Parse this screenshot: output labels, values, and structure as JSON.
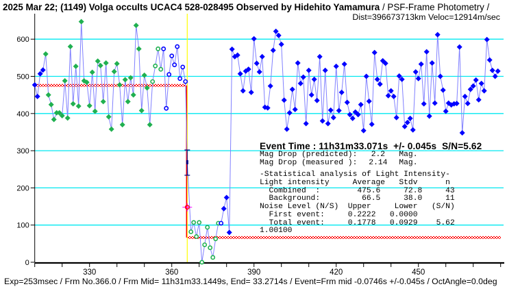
{
  "header": {
    "title_bold": "2025 Mar 22; (1149) Volga occults UCAC4 528-028495 Observed by Hidehito Yamamura",
    "title_rest": " / PSF-Frame Photometry /",
    "subtitle": "Dist=396673713km Veloc=12914m/sec"
  },
  "info": {
    "event_time": "Event Time : 11h31m33.071s  +/- 0.045s  S/N=5.62",
    "mag_pred_label": "Mag Drop (predicted):",
    "mag_pred_value": "2.2",
    "mag_pred_unit": "Mag.",
    "mag_meas_label": "Mag Drop (measured ):",
    "mag_meas_value": "2.14",
    "mag_meas_unit": "Mag.",
    "stats_title": "-Statistical analysis of Light Intensity-",
    "stats_header": {
      "label": "Light intensity",
      "avg": "Average",
      "stdv": "Stdv",
      "n": "n"
    },
    "combined": {
      "label": "Combined  :",
      "avg": "475.6",
      "stdv": "72.8",
      "n": "43"
    },
    "background": {
      "label": "Background:",
      "avg": "66.5",
      "stdv": "38.0",
      "n": "11"
    },
    "noise_header": {
      "label": "Noise Level (N/S)",
      "upper": "Upper",
      "lower": "Lower",
      "sn": "(S/N)"
    },
    "first_event": {
      "label": "First event:",
      "upper": "0.2222",
      "lower": "0.0000"
    },
    "total_event": {
      "label": "Total event:",
      "upper": "0.1778",
      "lower": "0.0929",
      "sn": "5.62"
    },
    "scale": "1.00100"
  },
  "footer": "Exp=253msec / Frm No.366.0 / Frm Mid= 11h31m33.1449s,  End= 33.2714s / Event=Frm mid -0.0746s +/-0.045s / OctAngle=0.0deg",
  "chart_data": {
    "type": "line",
    "xlabel": "",
    "ylabel": "",
    "xlim": [
      310,
      480
    ],
    "ylim": [
      0,
      600
    ],
    "xticks_minor_step": 10,
    "xtick_labels": [
      "330",
      "360",
      "390",
      "420",
      "450"
    ],
    "xtick_values": [
      330,
      360,
      390,
      420,
      450
    ],
    "ytick_labels": [
      "0",
      "100",
      "200",
      "300",
      "400",
      "500",
      "600"
    ],
    "ytick_values": [
      0,
      100,
      200,
      300,
      400,
      500,
      600
    ],
    "grid": true,
    "colors": {
      "grid": "#00e8f0",
      "line": "#8080ff",
      "blue": "#0000ff",
      "green": "#20b050",
      "event": "#000080",
      "step": "#ff0000",
      "event_line": "#ffff00",
      "cross": "#ff00ff"
    },
    "series": [
      {
        "name": "blue-filled-pre",
        "marker": "filled",
        "color": "blue",
        "start": 310,
        "values": [
          477,
          446,
          507,
          517
        ]
      },
      {
        "name": "green-filled-pre",
        "marker": "filled",
        "color": "green",
        "start": 314,
        "values": [
          560,
          450,
          424,
          384,
          402,
          402,
          394,
          488,
          388,
          580,
          426,
          527,
          420,
          647,
          488,
          484,
          421,
          511,
          406,
          541,
          529,
          432,
          536,
          391,
          358,
          513,
          534,
          477,
          370,
          491,
          432,
          496,
          450,
          637,
          574,
          408,
          503,
          469,
          370
        ]
      },
      {
        "name": "green-open-pre",
        "marker": "open",
        "color": "green",
        "start": 353,
        "values": [
          486,
          528,
          574,
          519
        ]
      },
      {
        "name": "blue-open-pre",
        "marker": "open",
        "color": "blue",
        "start": 357,
        "values": [
          574,
          414,
          505,
          555,
          531,
          580,
          494,
          525,
          486
        ]
      },
      {
        "name": "event-point",
        "marker": "event",
        "color": "event",
        "start": 365.65,
        "values": [
          269
        ],
        "error": [
          234,
          302
        ]
      },
      {
        "name": "green-open-occ",
        "marker": "open",
        "color": "green",
        "start": 367,
        "values": [
          82,
          107,
          69,
          107,
          0,
          47,
          94,
          39,
          13,
          63,
          105
        ]
      },
      {
        "name": "blue-open-post",
        "marker": "open",
        "color": "blue",
        "start": 378,
        "values": [
          105
        ]
      },
      {
        "name": "blue-filled-post",
        "marker": "filled",
        "color": "blue",
        "start": 379,
        "values": [
          144,
          174,
          80,
          573,
          553,
          557,
          507,
          461,
          514,
          519,
          457,
          601,
          535,
          512,
          553,
          417,
          415,
          474,
          570,
          621,
          610,
          586,
          436,
          358,
          402,
          465,
          411,
          536,
          481,
          498,
          373,
          516,
          450,
          492,
          435,
          553,
          380,
          516,
          373,
          409,
          389,
          527,
          408,
          457,
          533,
          430,
          397,
          387,
          404,
          397,
          424,
          354,
          500,
          433,
          371,
          564,
          492,
          479,
          542,
          535,
          448,
          461,
          446,
          389,
          501,
          492,
          365,
          376,
          387,
          356,
          512,
          494,
          533,
          426,
          566,
          393,
          536,
          428,
          612,
          500,
          463,
          406,
          428,
          423,
          426,
          427,
          579,
          348,
          446,
          427,
          465,
          474,
          490,
          437,
          481,
          461,
          599,
          544,
          516,
          500,
          514
        ]
      }
    ],
    "step_fit": {
      "upper": 475.6,
      "lower": 66.5,
      "event_frame": 365.65
    },
    "event_marker": {
      "frame": 365.65,
      "value": 148
    }
  }
}
